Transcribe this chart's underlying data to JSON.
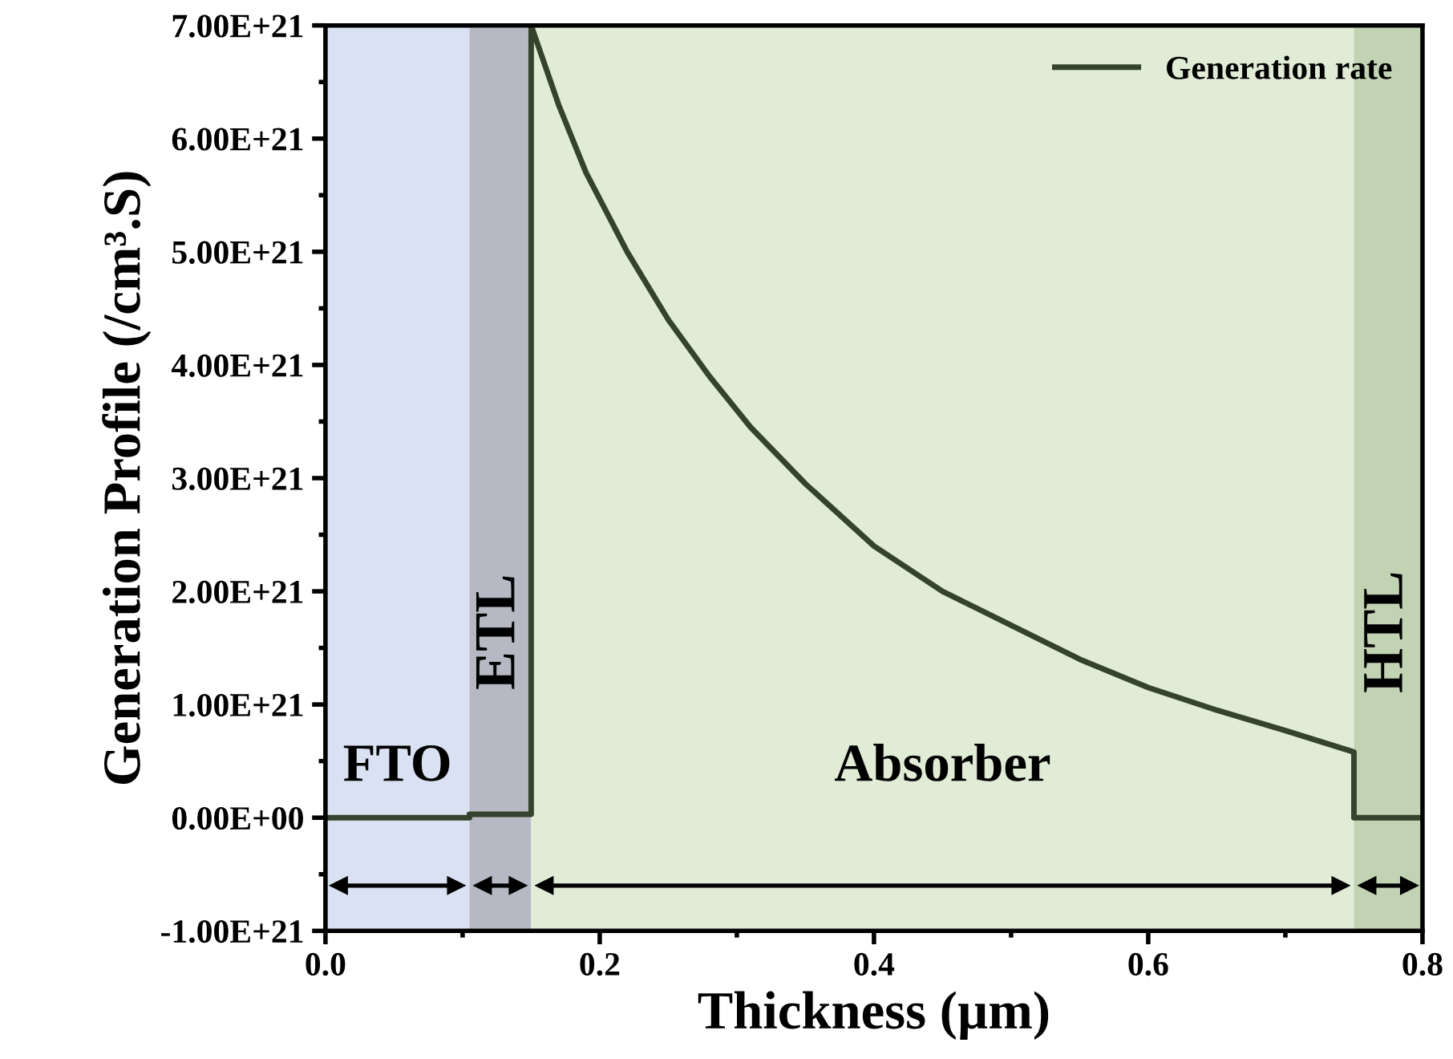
{
  "chart_data": {
    "type": "line",
    "xlabel": "Thickness (µm)",
    "ylabel": "Generation Profile (/cm³.S)",
    "xlim": [
      0,
      0.8
    ],
    "ylim": [
      -1e+21,
      7e+21
    ],
    "xticks": [
      {
        "value": 0,
        "label": "0.0"
      },
      0.2,
      0.4,
      0.6,
      0.8
    ],
    "yticks": [
      {
        "value": -1e+21,
        "label": "-1.00E+21"
      },
      {
        "value": 0,
        "label": "0.00E+00"
      },
      {
        "value": 1e+21,
        "label": "1.00E+21"
      },
      {
        "value": 2e+21,
        "label": "2.00E+21"
      },
      {
        "value": 3e+21,
        "label": "3.00E+21"
      },
      {
        "value": 4e+21,
        "label": "4.00E+21"
      },
      {
        "value": 5e+21,
        "label": "5.00E+21"
      },
      {
        "value": 6e+21,
        "label": "6.00E+21"
      },
      {
        "value": 7e+21,
        "label": "7.00E+21"
      }
    ],
    "series": [
      {
        "name": "Generation rate",
        "color": "#36432c",
        "x": [
          0,
          0.105,
          0.105,
          0.15,
          0.15,
          0.17,
          0.19,
          0.22,
          0.25,
          0.28,
          0.31,
          0.35,
          0.4,
          0.45,
          0.5,
          0.55,
          0.6,
          0.65,
          0.7,
          0.75,
          0.75,
          0.8
        ],
        "values": [
          0,
          0,
          3e+19,
          3e+19,
          7e+21,
          6.3e+21,
          5.7e+21,
          5e+21,
          4.4e+21,
          3.9e+21,
          3.45e+21,
          2.95e+21,
          2.4e+21,
          2e+21,
          1.7e+21,
          1.4e+21,
          1.15e+21,
          9.5e+20,
          7.7e+20,
          5.8e+20,
          0,
          0
        ]
      }
    ],
    "bands": [
      {
        "axis": "x",
        "from": 0,
        "to": 0.105,
        "label": "FTO",
        "color": "#d9e1f2"
      },
      {
        "axis": "x",
        "from": 0.105,
        "to": 0.15,
        "label": "ETL",
        "color": "#b6b9c3"
      },
      {
        "axis": "x",
        "from": 0.15,
        "to": 0.75,
        "label": "Absorber",
        "color": "#e0ecd6"
      },
      {
        "axis": "x",
        "from": 0.75,
        "to": 0.8,
        "label": "HTL",
        "color": "#c2d3b4"
      }
    ],
    "legend": "top right",
    "grid": false,
    "marker": "none",
    "line_style": "solid"
  }
}
